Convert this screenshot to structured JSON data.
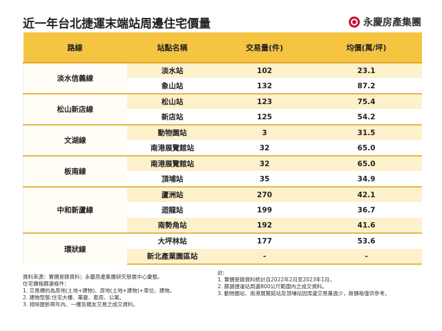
{
  "title": "近一年台北捷運末端站周邊住宅價量",
  "brand": "永慶房產集團",
  "table": {
    "header": [
      "路線",
      "站點名稱",
      "交易量(件)",
      "均價(萬/坪)"
    ],
    "groups": [
      {
        "line": "淡水信義線",
        "rows": [
          [
            "淡水站",
            "102",
            "23.1"
          ],
          [
            "象山站",
            "132",
            "87.2"
          ]
        ]
      },
      {
        "line": "松山新店線",
        "rows": [
          [
            "松山站",
            "123",
            "75.4"
          ],
          [
            "新店站",
            "125",
            "54.2"
          ]
        ]
      },
      {
        "line": "文湖線",
        "rows": [
          [
            "動物園站",
            "3",
            "31.5"
          ],
          [
            "南港展覽館站",
            "32",
            "65.0"
          ]
        ]
      },
      {
        "line": "板南線",
        "rows": [
          [
            "南港展覽館站",
            "32",
            "65.0"
          ],
          [
            "頂埔站",
            "35",
            "34.9"
          ]
        ]
      },
      {
        "line": "中和新蘆線",
        "rows": [
          [
            "蘆洲站",
            "270",
            "42.1"
          ],
          [
            "迴龍站",
            "199",
            "36.7"
          ],
          [
            "南勢角站",
            "192",
            "41.6"
          ]
        ]
      },
      {
        "line": "環狀線",
        "rows": [
          [
            "大坪林站",
            "177",
            "53.6"
          ],
          [
            "新北產業園區站",
            "-",
            "-"
          ]
        ]
      }
    ]
  },
  "notes": {
    "left": [
      "資料來源：實價登錄資料；永慶房產集團研究發展中心彙整。",
      "住宅價格篩選條件：",
      "1. 交易標的為房地(土地+建物)、房地(土地+建物)+車位、建物。",
      "2. 建物型態:住宅大樓、華廈、套房、公寓。",
      "3. 排除屋齡兩年內、一樓及親友交易之成交資料。"
    ],
    "right": [
      "註:",
      "1. 實價登錄資料統計自2022年2月至2023年1月。",
      "2. 篩選捷運站周邊800公尺範圍內之成交資料。",
      "3. 動物園站、南港展覽館站及頂埔站因周邊交易量過少，故價格僅供參考。"
    ]
  }
}
